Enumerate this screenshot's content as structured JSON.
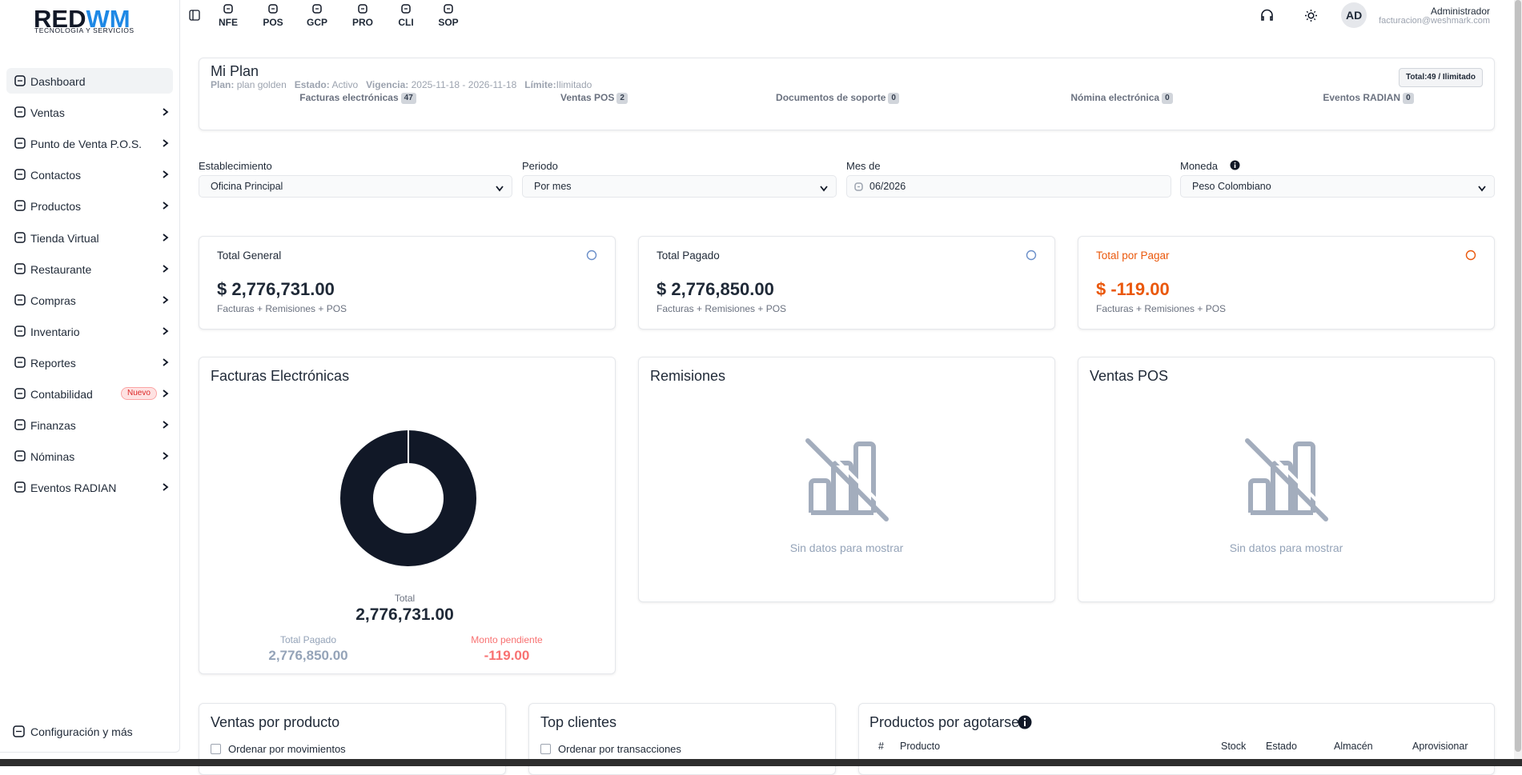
{
  "logo": {
    "title": "REDWM",
    "subtitle": "TECNOLOGIA Y SERVICIOS"
  },
  "sidebar": {
    "items": [
      "Dashboard",
      "Ventas",
      "Punto de Venta P.O.S.",
      "Contactos",
      "Productos",
      "Tienda Virtual",
      "Restaurante",
      "Compras",
      "Inventario",
      "Reportes",
      "Contabilidad",
      "Finanzas",
      "Nóminas",
      "Eventos RADIAN"
    ],
    "badge": "Nuevo",
    "footer": "Configuración y más"
  },
  "topbar": {
    "apps": [
      "NFE",
      "POS",
      "GCP",
      "PRO",
      "CLI",
      "SOP"
    ],
    "avatar": "AD",
    "user": "Administrador",
    "email": "facturacion@weshmark.com"
  },
  "plan": {
    "title": "Mi Plan",
    "fields": [
      {
        "label": "Plan:",
        "value": "plan golden"
      },
      {
        "label": "Estado:",
        "value": "Activo"
      },
      {
        "label": "Vigencia:",
        "value": "2025-11-18 - 2026-11-18"
      },
      {
        "label": "Límite:",
        "value": "Ilimitado"
      }
    ],
    "total": "Total:49 / Ilimitado",
    "counters": [
      {
        "label": "Facturas electrónicas",
        "count": "47"
      },
      {
        "label": "Ventas POS",
        "count": "2"
      },
      {
        "label": "Documentos de soporte",
        "count": "0"
      },
      {
        "label": "Nómina electrónica",
        "count": "0"
      },
      {
        "label": "Eventos RADIAN",
        "count": "0"
      }
    ]
  },
  "filters": [
    {
      "label": "Establecimiento",
      "value": "Oficina Principal"
    },
    {
      "label": "Periodo",
      "value": "Por mes"
    },
    {
      "label": "Mes de",
      "value": "06/2026"
    },
    {
      "label": "Moneda",
      "value": "Peso Colombiano"
    }
  ],
  "summary": [
    {
      "title": "Total General",
      "amount": "$ 2,776,731.00",
      "note": "Facturas + Remisiones + POS"
    },
    {
      "title": "Total Pagado",
      "amount": "$ 2,776,850.00",
      "note": "Facturas + Remisiones + POS"
    },
    {
      "title": "Total por Pagar",
      "amount": "$ -119.00",
      "note": "Facturas + Remisiones + POS"
    }
  ],
  "charts": [
    {
      "title": "Facturas Electrónicas",
      "total_label": "Total",
      "total": "2,776,731.00",
      "paid_label": "Total Pagado",
      "paid": "2,776,850.00",
      "pending_label": "Monto pendiente",
      "pending": "-119.00"
    },
    {
      "title": "Remisiones",
      "empty": "Sin datos para mostrar"
    },
    {
      "title": "Ventas POS",
      "empty": "Sin datos para mostrar"
    }
  ],
  "bottom": {
    "products": {
      "title": "Ventas por producto",
      "option": "Ordenar por movimientos"
    },
    "clients": {
      "title": "Top clientes",
      "option": "Ordenar por transacciones"
    },
    "stock": {
      "title": "Productos por agotarse",
      "columns": [
        "#",
        "Producto",
        "Stock",
        "Estado",
        "Almacén",
        "Aprovisionar"
      ]
    }
  }
}
